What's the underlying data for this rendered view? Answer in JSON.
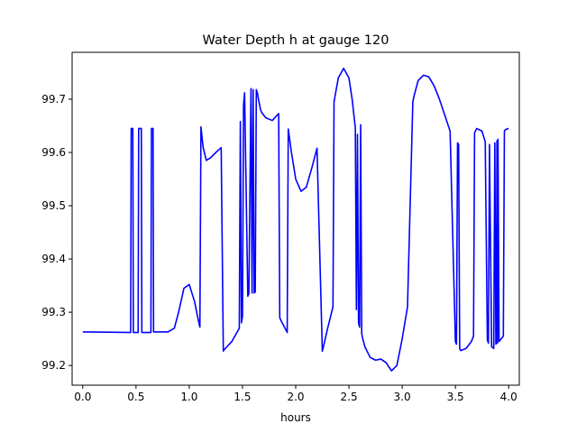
{
  "chart_data": {
    "type": "line",
    "title": "Water Depth h at gauge 120",
    "xlabel": "hours",
    "ylabel": "",
    "xlim": [
      -0.1,
      4.1
    ],
    "ylim": [
      99.163,
      99.788
    ],
    "xticks": [
      0.0,
      0.5,
      1.0,
      1.5,
      2.0,
      2.5,
      3.0,
      3.5,
      4.0
    ],
    "xtick_labels": [
      "0.0",
      "0.5",
      "1.0",
      "1.5",
      "2.0",
      "2.5",
      "3.0",
      "3.5",
      "4.0"
    ],
    "yticks": [
      99.2,
      99.3,
      99.4,
      99.5,
      99.6,
      99.7
    ],
    "ytick_labels": [
      "99.2",
      "99.3",
      "99.4",
      "99.5",
      "99.6",
      "99.7"
    ],
    "grid": false,
    "series": [
      {
        "color": "#0000ff",
        "x": [
          0.0,
          0.45,
          0.455,
          0.47,
          0.475,
          0.52,
          0.525,
          0.55,
          0.555,
          0.64,
          0.645,
          0.66,
          0.665,
          0.8,
          0.86,
          0.9,
          0.95,
          1.0,
          1.05,
          1.08,
          1.1,
          1.11,
          1.13,
          1.16,
          1.2,
          1.25,
          1.3,
          1.32,
          1.33,
          1.4,
          1.47,
          1.48,
          1.49,
          1.5,
          1.51,
          1.52,
          1.55,
          1.56,
          1.58,
          1.59,
          1.6,
          1.61,
          1.62,
          1.63,
          1.64,
          1.65,
          1.67,
          1.68,
          1.72,
          1.78,
          1.84,
          1.85,
          1.86,
          1.9,
          1.92,
          1.93,
          1.96,
          2.0,
          2.05,
          2.1,
          2.15,
          2.2,
          2.25,
          2.26,
          2.3,
          2.35,
          2.36,
          2.4,
          2.45,
          2.5,
          2.53,
          2.56,
          2.57,
          2.58,
          2.59,
          2.6,
          2.61,
          2.62,
          2.63,
          2.65,
          2.7,
          2.75,
          2.8,
          2.85,
          2.9,
          2.95,
          3.0,
          3.05,
          3.1,
          3.11,
          3.15,
          3.2,
          3.25,
          3.3,
          3.35,
          3.4,
          3.45,
          3.5,
          3.51,
          3.52,
          3.53,
          3.54,
          3.55,
          3.6,
          3.65,
          3.67,
          3.68,
          3.7,
          3.75,
          3.78,
          3.8,
          3.81,
          3.82,
          3.84,
          3.86,
          3.87,
          3.88,
          3.885,
          3.89,
          3.895,
          3.9,
          3.91,
          3.95,
          3.96,
          3.97,
          4.0
        ],
        "y": [
          99.263,
          99.262,
          99.645,
          99.645,
          99.262,
          99.262,
          99.645,
          99.645,
          99.262,
          99.262,
          99.645,
          99.645,
          99.263,
          99.263,
          99.27,
          99.3,
          99.345,
          99.352,
          99.32,
          99.29,
          99.272,
          99.648,
          99.61,
          99.585,
          99.59,
          99.6,
          99.609,
          99.227,
          99.23,
          99.245,
          99.27,
          99.658,
          99.28,
          99.292,
          99.69,
          99.712,
          99.33,
          99.335,
          99.72,
          99.336,
          99.718,
          99.336,
          99.338,
          99.718,
          99.712,
          99.7,
          99.68,
          99.675,
          99.665,
          99.66,
          99.673,
          99.29,
          99.285,
          99.27,
          99.262,
          99.644,
          99.6,
          99.55,
          99.527,
          99.535,
          99.57,
          99.608,
          99.227,
          99.235,
          99.27,
          99.31,
          99.695,
          99.74,
          99.758,
          99.74,
          99.7,
          99.646,
          99.305,
          99.634,
          99.28,
          99.272,
          99.652,
          99.26,
          99.25,
          99.235,
          99.215,
          99.21,
          99.212,
          99.205,
          99.19,
          99.2,
          99.25,
          99.31,
          99.695,
          99.705,
          99.735,
          99.745,
          99.742,
          99.725,
          99.7,
          99.67,
          99.64,
          99.245,
          99.24,
          99.618,
          99.615,
          99.232,
          99.228,
          99.232,
          99.245,
          99.255,
          99.637,
          99.645,
          99.64,
          99.62,
          99.248,
          99.242,
          99.615,
          99.235,
          99.232,
          99.618,
          99.24,
          99.242,
          99.622,
          99.242,
          99.625,
          99.245,
          99.255,
          99.64,
          99.643,
          99.645
        ]
      }
    ]
  }
}
